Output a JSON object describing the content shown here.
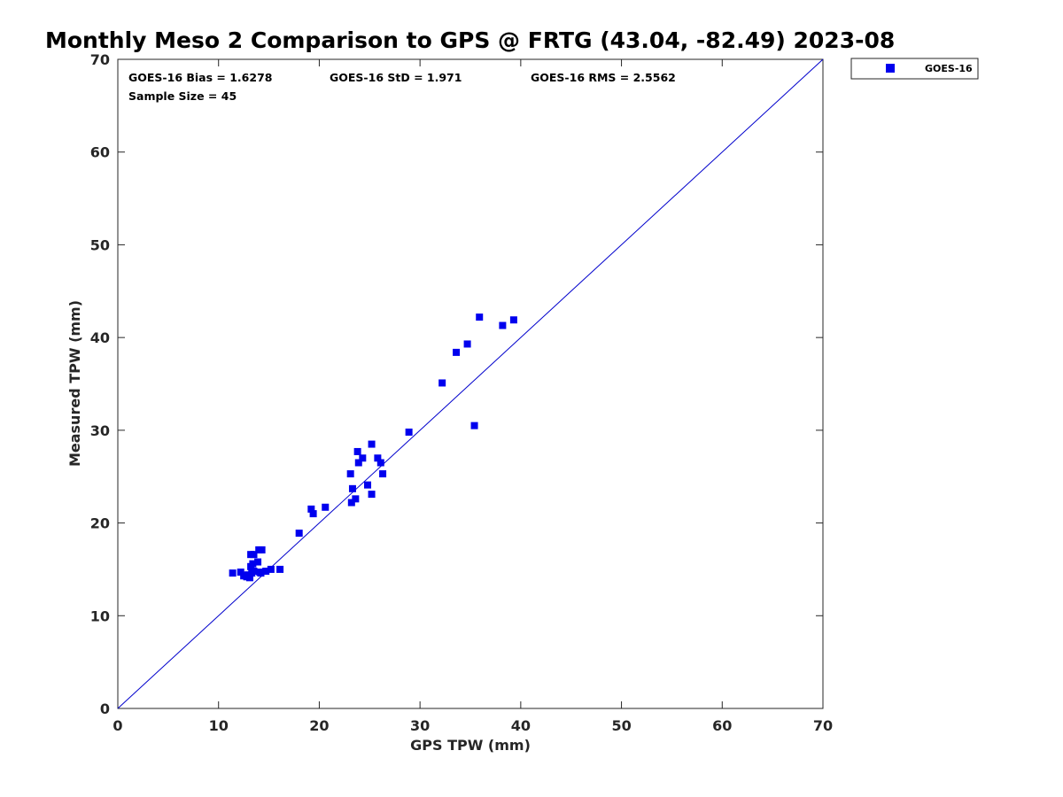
{
  "chart_data": {
    "type": "scatter",
    "title": "Monthly Meso 2 Comparison to GPS @ FRTG (43.04, -82.49) 2023-08",
    "xlabel": "GPS TPW (mm)",
    "ylabel": "Measured TPW (mm)",
    "xlim": [
      0,
      70
    ],
    "ylim": [
      0,
      70
    ],
    "xticks": [
      "0",
      "10",
      "20",
      "30",
      "40",
      "50",
      "60",
      "70"
    ],
    "yticks": [
      "0",
      "10",
      "20",
      "30",
      "40",
      "50",
      "60",
      "70"
    ],
    "grid": false,
    "legend_position": "outside-top-right",
    "reference_line": {
      "from": [
        0,
        0
      ],
      "to": [
        70,
        70
      ],
      "color": "#0000cc"
    },
    "stats": {
      "bias": "GOES-16 Bias = 1.6278",
      "std": "GOES-16 StD = 1.971",
      "rms": "GOES-16 RMS = 2.5562",
      "sample": "Sample Size = 45"
    },
    "series": [
      {
        "name": "GOES-16",
        "color": "#0000ee",
        "marker": "square",
        "points": [
          [
            11.4,
            14.6
          ],
          [
            12.2,
            14.7
          ],
          [
            12.5,
            14.3
          ],
          [
            12.8,
            14.2
          ],
          [
            13.1,
            14.1
          ],
          [
            13.3,
            14.6
          ],
          [
            12.9,
            14.4
          ],
          [
            13.5,
            14.8
          ],
          [
            13.2,
            15.3
          ],
          [
            13.4,
            15.6
          ],
          [
            13.9,
            15.8
          ],
          [
            13.2,
            16.6
          ],
          [
            13.5,
            16.6
          ],
          [
            14.0,
            17.1
          ],
          [
            14.3,
            17.1
          ],
          [
            14.2,
            14.6
          ],
          [
            14.7,
            14.8
          ],
          [
            15.2,
            15.0
          ],
          [
            16.1,
            15.0
          ],
          [
            18.0,
            18.9
          ],
          [
            19.2,
            21.5
          ],
          [
            19.4,
            21.0
          ],
          [
            20.6,
            21.7
          ],
          [
            23.1,
            25.3
          ],
          [
            23.3,
            23.7
          ],
          [
            23.2,
            22.2
          ],
          [
            23.6,
            22.6
          ],
          [
            23.8,
            27.7
          ],
          [
            23.9,
            26.5
          ],
          [
            24.3,
            27.0
          ],
          [
            24.8,
            24.1
          ],
          [
            25.2,
            28.5
          ],
          [
            25.2,
            23.1
          ],
          [
            25.8,
            27.0
          ],
          [
            26.1,
            26.5
          ],
          [
            26.3,
            25.3
          ],
          [
            28.9,
            29.8
          ],
          [
            32.2,
            35.1
          ],
          [
            33.6,
            38.4
          ],
          [
            34.7,
            39.3
          ],
          [
            35.9,
            42.2
          ],
          [
            35.4,
            30.5
          ],
          [
            38.2,
            41.3
          ],
          [
            39.3,
            41.9
          ],
          [
            14.1,
            14.7
          ]
        ]
      }
    ]
  }
}
